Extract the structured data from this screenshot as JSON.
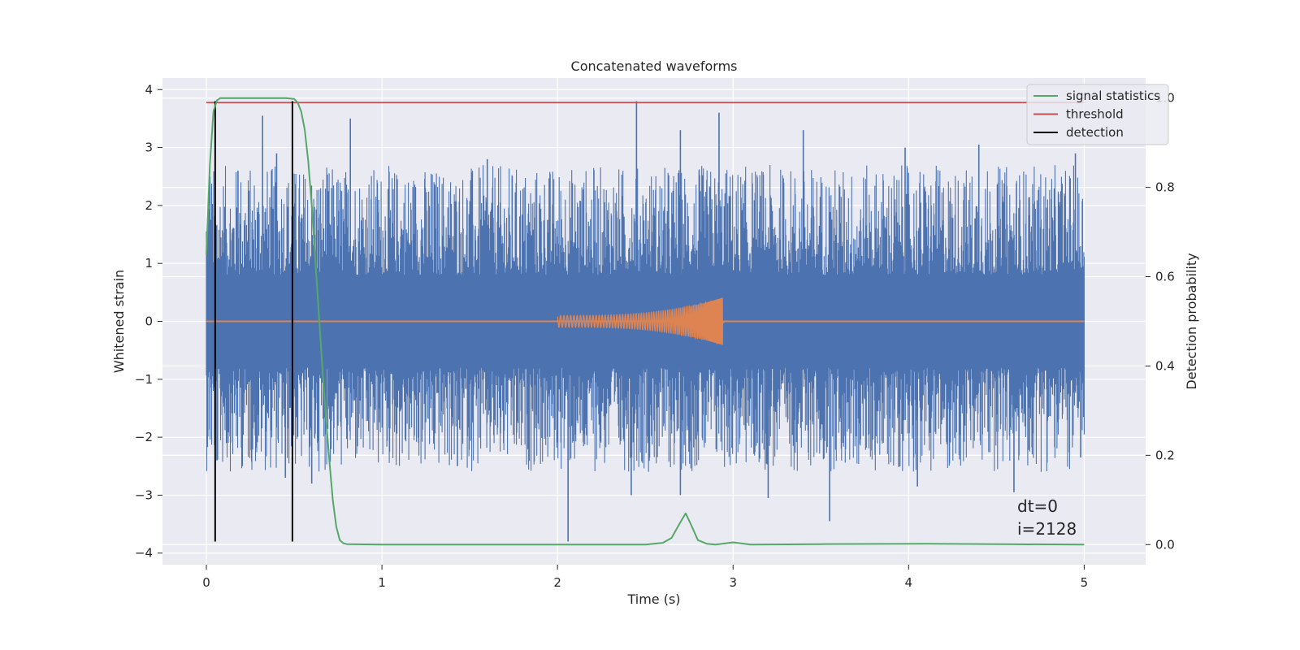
{
  "chart_data": {
    "type": "line",
    "title": "Concatenated waveforms",
    "xlabel": "Time (s)",
    "ylabel": "Whitened strain",
    "ylabel_right": "Detection probability",
    "xlim": [
      -0.25,
      5.35
    ],
    "ylim": [
      -4.2,
      4.2
    ],
    "ylim_right": [
      -0.045,
      1.045
    ],
    "xticks": [
      0,
      1,
      2,
      3,
      4,
      5
    ],
    "yticks": [
      -4,
      -3,
      -2,
      -1,
      0,
      1,
      2,
      3,
      4
    ],
    "yticks_right": [
      0.0,
      0.2,
      0.4,
      0.6,
      0.8,
      1.0
    ],
    "xtick_labels": [
      "0",
      "1",
      "2",
      "3",
      "4",
      "5"
    ],
    "ytick_labels": [
      "−4",
      "−3",
      "−2",
      "−1",
      "0",
      "1",
      "2",
      "3",
      "4"
    ],
    "ytick_right_labels": [
      "0.0",
      "0.2",
      "0.4",
      "0.6",
      "0.8",
      "1.0"
    ],
    "grid": true,
    "legend_position": "top-right",
    "colors": {
      "background": "#eaeaf2",
      "strain": "#4c72b0",
      "template": "#dd8452",
      "signal_statistics": "#55a868",
      "threshold": "#c44e52",
      "detection": "#000000"
    },
    "series": [
      {
        "name": "signal statistics",
        "axis": "right",
        "x": [
          0,
          0.02,
          0.04,
          0.06,
          0.08,
          0.1,
          0.3,
          0.45,
          0.5,
          0.52,
          0.54,
          0.56,
          0.58,
          0.6,
          0.62,
          0.64,
          0.66,
          0.68,
          0.7,
          0.72,
          0.74,
          0.76,
          0.78,
          0.8,
          1.0,
          2.0,
          2.5,
          2.6,
          2.65,
          2.7,
          2.73,
          2.76,
          2.8,
          2.85,
          2.9,
          3.0,
          3.1,
          3.5,
          4.1,
          5.0
        ],
        "y": [
          0.65,
          0.85,
          0.97,
          0.995,
          1.0,
          1.0,
          1.0,
          1.0,
          0.998,
          0.99,
          0.97,
          0.93,
          0.86,
          0.76,
          0.64,
          0.52,
          0.4,
          0.29,
          0.19,
          0.1,
          0.04,
          0.01,
          0.003,
          0.001,
          0.0,
          0.0,
          0.0,
          0.004,
          0.015,
          0.05,
          0.07,
          0.045,
          0.01,
          0.002,
          0.0,
          0.005,
          0.0,
          0.001,
          0.002,
          0.0
        ]
      },
      {
        "name": "threshold",
        "axis": "right",
        "x": [
          0,
          5
        ],
        "y": [
          0.99,
          0.99
        ]
      },
      {
        "name": "detection",
        "axis": "left",
        "x_lines": [
          0.05,
          0.49
        ],
        "ylim": [
          -3.8,
          3.8
        ]
      }
    ],
    "strain_noise": {
      "x_range": [
        0,
        5
      ],
      "dense_band": [
        -0.77,
        0.77
      ],
      "spikes_positive_max": [
        [
          0.02,
          2.5
        ],
        [
          0.18,
          2.6
        ],
        [
          0.32,
          3.55
        ],
        [
          0.4,
          2.9
        ],
        [
          0.82,
          3.5
        ],
        [
          1.6,
          2.8
        ],
        [
          2.45,
          3.8
        ],
        [
          2.7,
          3.3
        ],
        [
          2.92,
          3.6
        ],
        [
          3.4,
          3.3
        ],
        [
          3.98,
          3.0
        ],
        [
          4.4,
          3.05
        ],
        [
          4.95,
          2.9
        ]
      ],
      "spikes_negative_min": [
        [
          0.06,
          -2.4
        ],
        [
          0.45,
          -2.7
        ],
        [
          0.6,
          -2.8
        ],
        [
          1.43,
          -2.5
        ],
        [
          2.06,
          -3.8
        ],
        [
          2.42,
          -3.0
        ],
        [
          2.7,
          -3.0
        ],
        [
          3.2,
          -3.05
        ],
        [
          3.55,
          -3.45
        ],
        [
          4.05,
          -2.85
        ],
        [
          4.6,
          -2.95
        ],
        [
          4.98,
          -2.35
        ]
      ]
    },
    "chirp": {
      "x_range": [
        2.0,
        2.95
      ],
      "start_amplitude": 0.1,
      "end_amplitude": 0.42,
      "merger_time": 2.94
    },
    "annotation": [
      "dt=0",
      "i=2128"
    ],
    "legend": [
      "signal statistics",
      "threshold",
      "detection"
    ]
  }
}
